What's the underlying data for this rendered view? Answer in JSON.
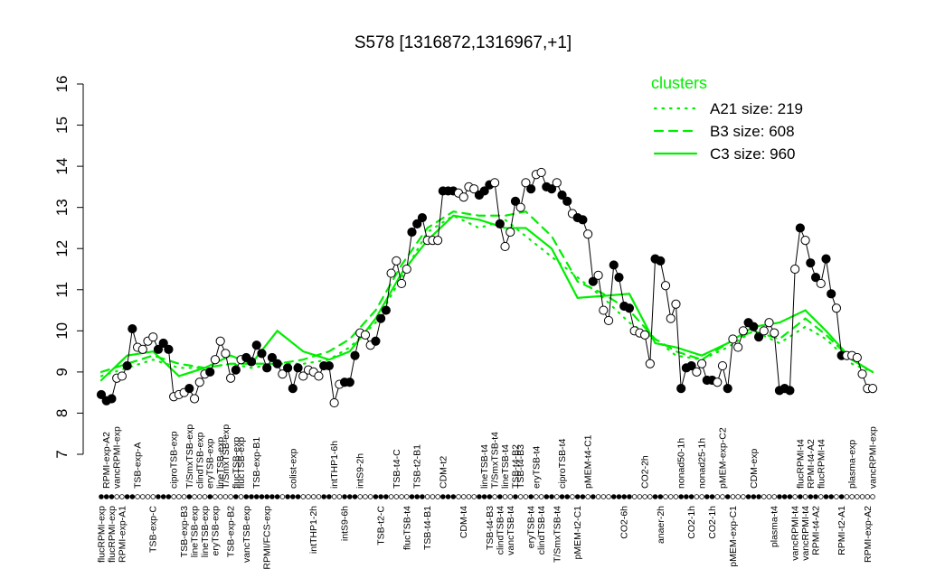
{
  "chart_data": {
    "type": "line",
    "title": "S578 [1316872,1316967,+1]",
    "legend_title": "clusters",
    "legend": "top-right",
    "ylim": [
      7,
      16
    ],
    "yticks": [
      7,
      8,
      9,
      10,
      11,
      12,
      13,
      14,
      15,
      16
    ],
    "xlim": [
      0,
      149
    ],
    "sample_color": "#000000",
    "values": [
      8.45,
      8.3,
      8.35,
      8.85,
      8.9,
      9.15,
      10.05,
      9.6,
      9.55,
      9.75,
      9.85,
      9.55,
      9.7,
      9.55,
      8.4,
      8.45,
      8.5,
      8.6,
      8.35,
      8.75,
      8.95,
      9.0,
      9.3,
      9.75,
      9.45,
      8.85,
      9.05,
      9.3,
      9.35,
      9.25,
      9.65,
      9.45,
      9.1,
      9.35,
      9.2,
      8.95,
      9.1,
      8.6,
      9.1,
      8.9,
      9.05,
      9.0,
      8.9,
      9.15,
      9.15,
      8.25,
      8.7,
      8.75,
      8.75,
      9.4,
      9.95,
      9.9,
      9.65,
      9.75,
      10.3,
      10.5,
      11.4,
      11.7,
      11.15,
      11.5,
      12.4,
      12.6,
      12.75,
      12.2,
      12.2,
      12.2,
      13.4,
      13.4,
      13.4,
      13.35,
      13.25,
      13.5,
      13.45,
      13.3,
      13.4,
      13.55,
      13.6,
      12.6,
      12.05,
      12.4,
      13.15,
      13.0,
      13.6,
      13.45,
      13.8,
      13.85,
      13.5,
      13.45,
      13.6,
      13.3,
      13.15,
      12.85,
      12.75,
      12.7,
      12.35,
      11.2,
      11.35,
      10.5,
      10.25,
      11.6,
      11.3,
      10.6,
      10.55,
      10.0,
      9.95,
      9.9,
      9.2,
      11.75,
      11.7,
      11.1,
      10.3,
      10.65,
      8.6,
      9.1,
      9.15,
      9.0,
      9.2,
      8.8,
      8.8,
      8.75,
      9.15,
      8.6,
      9.8,
      9.6,
      10.0,
      10.2,
      10.1,
      9.85,
      10.0,
      10.2,
      9.95,
      8.55,
      8.6,
      8.55,
      11.5,
      12.5,
      12.2,
      11.65,
      11.3,
      11.15,
      11.75,
      10.9,
      10.55,
      9.4,
      9.4,
      9.4,
      9.35,
      8.95,
      8.6,
      8.6
    ],
    "fills": [
      "black",
      "black",
      "black",
      "white",
      "white",
      "black",
      "black",
      "white",
      "white",
      "white",
      "white",
      "black",
      "black",
      "black",
      "white",
      "white",
      "white",
      "black",
      "white",
      "white",
      "white",
      "black",
      "white",
      "white",
      "white",
      "white",
      "black",
      "white",
      "black",
      "black",
      "black",
      "black",
      "black",
      "black",
      "black",
      "white",
      "black",
      "black",
      "black",
      "white",
      "white",
      "white",
      "white",
      "black",
      "black",
      "white",
      "white",
      "black",
      "black",
      "black",
      "white",
      "white",
      "white",
      "black",
      "black",
      "black",
      "white",
      "white",
      "white",
      "white",
      "black",
      "black",
      "black",
      "white",
      "white",
      "white",
      "black",
      "black",
      "black",
      "white",
      "white",
      "white",
      "white",
      "black",
      "black",
      "black",
      "white",
      "black",
      "white",
      "white",
      "black",
      "white",
      "white",
      "black",
      "white",
      "white",
      "black",
      "black",
      "white",
      "black",
      "black",
      "white",
      "black",
      "black",
      "white",
      "black",
      "white",
      "white",
      "white",
      "black",
      "black",
      "black",
      "black",
      "white",
      "white",
      "white",
      "white",
      "black",
      "black",
      "white",
      "white",
      "white",
      "black",
      "black",
      "black",
      "white",
      "white",
      "black",
      "black",
      "white",
      "white",
      "black",
      "white",
      "white",
      "white",
      "black",
      "black",
      "black",
      "white",
      "white",
      "white",
      "black",
      "black",
      "black",
      "white",
      "black",
      "white",
      "black",
      "black",
      "white",
      "black",
      "black",
      "white",
      "black",
      "white",
      "white",
      "white",
      "white",
      "white",
      "white"
    ],
    "xticks_bottom": [
      {
        "value": 0,
        "label": "flucRPMI-exp"
      },
      {
        "value": 2,
        "label": "flucRPMI-exp"
      },
      {
        "value": 4,
        "label": "RPMI-exp-A1"
      },
      {
        "value": 10,
        "label": "TSB-exp-C"
      },
      {
        "value": 16,
        "label": "TSB-exp-B3"
      },
      {
        "value": 18,
        "label": "lineTSB-exp"
      },
      {
        "value": 20,
        "label": "lineTSB-exp"
      },
      {
        "value": 22,
        "label": "eryTSB-exp"
      },
      {
        "value": 25,
        "label": "TSB-exp-B2"
      },
      {
        "value": 28,
        "label": "vancTSB-exp"
      },
      {
        "value": 32,
        "label": "RPMI/FCS-exp"
      },
      {
        "value": 41,
        "label": "intTHP1-2h"
      },
      {
        "value": 47,
        "label": "intS9-6h"
      },
      {
        "value": 54,
        "label": "TSB-t2-C"
      },
      {
        "value": 59,
        "label": "flucTSB-t4"
      },
      {
        "value": 63,
        "label": "TSB-t4-B1"
      },
      {
        "value": 70,
        "label": "CDM-t4"
      },
      {
        "value": 75,
        "label": "TSB-t4-B3"
      },
      {
        "value": 77,
        "label": "clindTSB-t4"
      },
      {
        "value": 79,
        "label": "vancTSB-t4"
      },
      {
        "value": 83,
        "label": "eryTSB-t4"
      },
      {
        "value": 85,
        "label": "clindTSB-t4"
      },
      {
        "value": 88,
        "label": "T/SmxTSB-t4"
      },
      {
        "value": 92,
        "label": "pMEM-t2-C1"
      },
      {
        "value": 101,
        "label": "CO2-6h"
      },
      {
        "value": 108,
        "label": "anaer-2h"
      },
      {
        "value": 114,
        "label": "CO2-1h"
      },
      {
        "value": 118,
        "label": "CO2-1h"
      },
      {
        "value": 122,
        "label": "pMEM-exp-C1"
      },
      {
        "value": 130,
        "label": "plasma-t4"
      },
      {
        "value": 134,
        "label": "vancRPMI-t4"
      },
      {
        "value": 136,
        "label": "vancRPMI-t4"
      },
      {
        "value": 138,
        "label": "RPMI-t4-A2"
      },
      {
        "value": 143,
        "label": "RPMI-t2-A1"
      },
      {
        "value": 148,
        "label": "RPMI-exp-A2"
      }
    ],
    "xticks_top": [
      {
        "value": 1,
        "label": "RPMI-exp-A2"
      },
      {
        "value": 3,
        "label": "vancRPMI-exp"
      },
      {
        "value": 7,
        "label": "TSB-exp-A"
      },
      {
        "value": 14,
        "label": "ciproTSB-exp"
      },
      {
        "value": 17,
        "label": "T/SmxTSB-exp"
      },
      {
        "value": 19,
        "label": "clindTSB-exp"
      },
      {
        "value": 21,
        "label": "eryTSB-exp"
      },
      {
        "value": 23,
        "label": "lineTSB-exp"
      },
      {
        "value": 24,
        "label": "T/SmxTSB-exp"
      },
      {
        "value": 26,
        "label": "flucTSB-exp"
      },
      {
        "value": 27,
        "label": "flucTSB-exp"
      },
      {
        "value": 30,
        "label": "TSB-exp-B1"
      },
      {
        "value": 37,
        "label": "colist-exp"
      },
      {
        "value": 45,
        "label": "intTHP1-6h"
      },
      {
        "value": 50,
        "label": "intS9-2h"
      },
      {
        "value": 57,
        "label": "TSB-t4-C"
      },
      {
        "value": 61,
        "label": "TSB-t2-B1"
      },
      {
        "value": 66,
        "label": "CDM-t2"
      },
      {
        "value": 74,
        "label": "lineTSB-t4"
      },
      {
        "value": 76,
        "label": "T/SmxTSB-t4"
      },
      {
        "value": 78,
        "label": "lineTSB-t4"
      },
      {
        "value": 80,
        "label": "TSB-t4-B2"
      },
      {
        "value": 81,
        "label": "TSB-t4-B3"
      },
      {
        "value": 84,
        "label": "eryTSB-t4"
      },
      {
        "value": 89,
        "label": "ciproTSB-t4"
      },
      {
        "value": 94,
        "label": "pMEM-t4-C1"
      },
      {
        "value": 105,
        "label": "CO2-2h"
      },
      {
        "value": 112,
        "label": "nonad50-1h"
      },
      {
        "value": 116,
        "label": "nonad25-1h"
      },
      {
        "value": 120,
        "label": "pMEM-exp-C2"
      },
      {
        "value": 126,
        "label": "CDM-exp"
      },
      {
        "value": 135,
        "label": "flucRPMI-t4"
      },
      {
        "value": 137,
        "label": "RPMI-t4-A2"
      },
      {
        "value": 139,
        "label": "flucRPMI-t4"
      },
      {
        "value": 145,
        "label": "plasma-exp"
      },
      {
        "value": 149,
        "label": "vancRPMI-exp"
      }
    ],
    "series": [
      {
        "name": "A21 size: 219",
        "color": "#00ee00",
        "dash": "dotted",
        "x": [
          0,
          5,
          10,
          15,
          20,
          25,
          29,
          34,
          39,
          44,
          48,
          53,
          58,
          63,
          68,
          73,
          78,
          82,
          87,
          92,
          97,
          102,
          107,
          111,
          116,
          121,
          126,
          131,
          136,
          140,
          145,
          149
        ],
        "values": [
          8.9,
          9.1,
          9.3,
          9.1,
          9.1,
          9.2,
          9.1,
          9.2,
          9.2,
          9.3,
          9.6,
          10.2,
          11.3,
          12.4,
          12.8,
          12.5,
          12.7,
          12.3,
          11.8,
          11.3,
          10.8,
          10.2,
          9.8,
          9.4,
          9.3,
          9.6,
          10.0,
          9.7,
          10.1,
          9.8,
          9.2,
          9.0
        ]
      },
      {
        "name": "B3 size: 608",
        "color": "#00ee00",
        "dash": "dashed",
        "x": [
          0,
          5,
          10,
          15,
          20,
          25,
          29,
          34,
          39,
          44,
          48,
          53,
          58,
          63,
          68,
          73,
          78,
          82,
          87,
          92,
          97,
          102,
          107,
          111,
          116,
          121,
          126,
          131,
          136,
          140,
          145,
          149
        ],
        "values": [
          9.0,
          9.2,
          9.4,
          9.2,
          9.1,
          9.2,
          9.2,
          9.2,
          9.3,
          9.5,
          9.8,
          10.5,
          11.6,
          12.5,
          12.9,
          12.8,
          12.8,
          12.9,
          12.3,
          11.2,
          10.9,
          10.5,
          9.8,
          9.5,
          9.3,
          9.7,
          10.0,
          9.8,
          10.3,
          9.9,
          9.3,
          9.0
        ]
      },
      {
        "name": "C3 size: 960",
        "color": "#00ee00",
        "dash": "solid",
        "x": [
          0,
          5,
          10,
          15,
          20,
          25,
          29,
          34,
          39,
          44,
          48,
          53,
          58,
          63,
          68,
          73,
          78,
          82,
          87,
          92,
          97,
          102,
          107,
          111,
          116,
          121,
          126,
          131,
          136,
          140,
          145,
          149
        ],
        "values": [
          8.8,
          9.4,
          9.5,
          8.9,
          9.1,
          9.4,
          9.2,
          10.0,
          9.5,
          9.3,
          9.5,
          10.3,
          11.4,
          12.2,
          12.8,
          12.7,
          12.5,
          12.5,
          12.0,
          10.8,
          10.85,
          10.9,
          9.7,
          9.6,
          9.4,
          9.7,
          10.1,
          10.2,
          10.5,
          10.0,
          9.3,
          9.0
        ]
      }
    ]
  }
}
